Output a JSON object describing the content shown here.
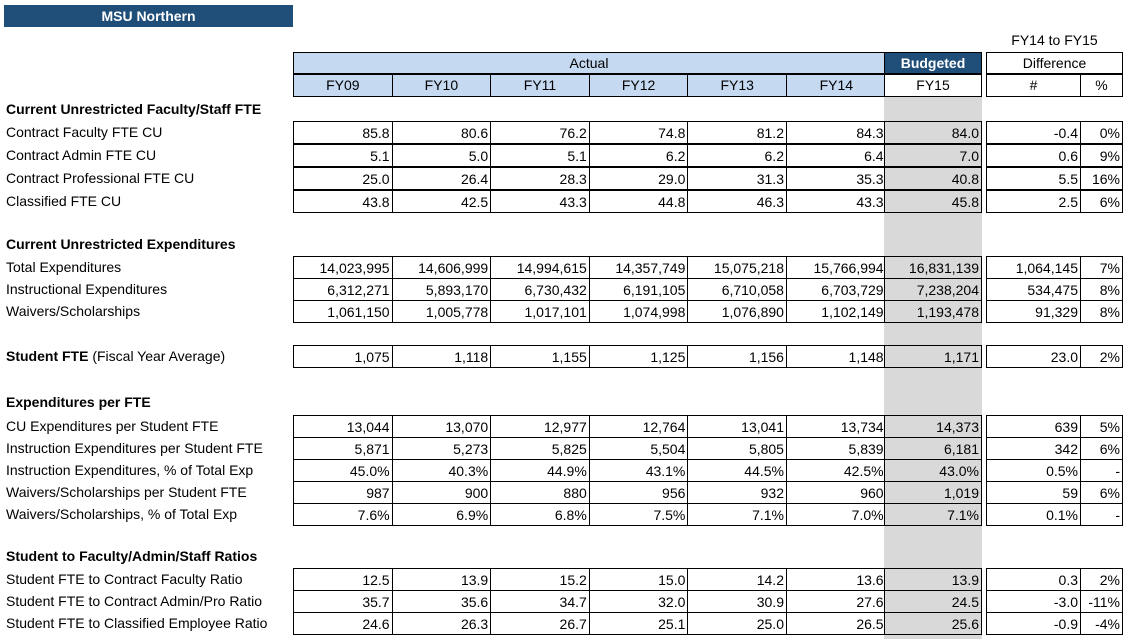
{
  "org_title": "MSU Northern",
  "header": {
    "diff_top": "FY14 to FY15",
    "actual_label": "Actual",
    "budgeted_label": "Budgeted",
    "difference_label": "Difference",
    "years": [
      "FY09",
      "FY10",
      "FY11",
      "FY12",
      "FY13",
      "FY14"
    ],
    "budget_year": "FY15",
    "diff_cols": [
      "#",
      "%"
    ]
  },
  "sections": [
    {
      "title": "Current Unrestricted Faculty/Staff FTE",
      "rows": [
        {
          "label": "Contract Faculty FTE CU",
          "values": [
            "85.8",
            "80.6",
            "76.2",
            "74.8",
            "81.2",
            "84.3"
          ],
          "budget": "84.0",
          "diff": "-0.4",
          "pct": "0%"
        },
        {
          "label": "Contract Admin FTE CU",
          "values": [
            "5.1",
            "5.0",
            "5.1",
            "6.2",
            "6.2",
            "6.4"
          ],
          "budget": "7.0",
          "diff": "0.6",
          "pct": "9%"
        },
        {
          "label": "Contract Professional FTE CU",
          "values": [
            "25.0",
            "26.4",
            "28.3",
            "29.0",
            "31.3",
            "35.3"
          ],
          "budget": "40.8",
          "diff": "5.5",
          "pct": "16%"
        },
        {
          "label": "Classified FTE CU",
          "values": [
            "43.8",
            "42.5",
            "43.3",
            "44.8",
            "46.3",
            "43.3"
          ],
          "budget": "45.8",
          "diff": "2.5",
          "pct": "6%"
        }
      ]
    },
    {
      "title": "Current Unrestricted Expenditures",
      "rows": [
        {
          "label": "Total Expenditures",
          "values": [
            "14,023,995",
            "14,606,999",
            "14,994,615",
            "14,357,749",
            "15,075,218",
            "15,766,994"
          ],
          "budget": "16,831,139",
          "diff": "1,064,145",
          "pct": "7%"
        },
        {
          "label": "Instructional Expenditures",
          "values": [
            "6,312,271",
            "5,893,170",
            "6,730,432",
            "6,191,105",
            "6,710,058",
            "6,703,729"
          ],
          "budget": "7,238,204",
          "diff": "534,475",
          "pct": "8%"
        },
        {
          "label": "Waivers/Scholarships",
          "values": [
            "1,061,150",
            "1,005,778",
            "1,017,101",
            "1,074,998",
            "1,076,890",
            "1,102,149"
          ],
          "budget": "1,193,478",
          "diff": "91,329",
          "pct": "8%"
        }
      ]
    },
    {
      "title": "",
      "rows": [
        {
          "label": "Student FTE",
          "label_suffix": " (Fiscal Year Average)",
          "bold": true,
          "values": [
            "1,075",
            "1,118",
            "1,155",
            "1,125",
            "1,156",
            "1,148"
          ],
          "budget": "1,171",
          "diff": "23.0",
          "pct": "2%"
        }
      ]
    },
    {
      "title": "Expenditures per FTE",
      "rows": [
        {
          "label": "CU Expenditures per Student FTE",
          "values": [
            "13,044",
            "13,070",
            "12,977",
            "12,764",
            "13,041",
            "13,734"
          ],
          "budget": "14,373",
          "diff": "639",
          "pct": "5%"
        },
        {
          "label": "Instruction Expenditures per Student FTE",
          "values": [
            "5,871",
            "5,273",
            "5,825",
            "5,504",
            "5,805",
            "5,839"
          ],
          "budget": "6,181",
          "diff": "342",
          "pct": "6%"
        },
        {
          "label": "Instruction Expenditures, % of Total Exp",
          "values": [
            "45.0%",
            "40.3%",
            "44.9%",
            "43.1%",
            "44.5%",
            "42.5%"
          ],
          "budget": "43.0%",
          "diff": "0.5%",
          "pct": "-"
        },
        {
          "label": "Waivers/Scholarships per Student FTE",
          "values": [
            "987",
            "900",
            "880",
            "956",
            "932",
            "960"
          ],
          "budget": "1,019",
          "diff": "59",
          "pct": "6%"
        },
        {
          "label": "Waivers/Scholarships, % of Total Exp",
          "values": [
            "7.6%",
            "6.9%",
            "6.8%",
            "7.5%",
            "7.1%",
            "7.0%"
          ],
          "budget": "7.1%",
          "diff": "0.1%",
          "pct": "-"
        }
      ]
    },
    {
      "title": "Student to Faculty/Admin/Staff Ratios",
      "rows": [
        {
          "label": "Student FTE to Contract Faculty Ratio",
          "values": [
            "12.5",
            "13.9",
            "15.2",
            "15.0",
            "14.2",
            "13.6"
          ],
          "budget": "13.9",
          "diff": "0.3",
          "pct": "2%"
        },
        {
          "label": "Student FTE to Contract Admin/Pro Ratio",
          "values": [
            "35.7",
            "35.6",
            "34.7",
            "32.0",
            "30.9",
            "27.6"
          ],
          "budget": "24.5",
          "diff": "-3.0",
          "pct": "-11%"
        },
        {
          "label": "Student FTE to Classified Employee Ratio",
          "values": [
            "24.6",
            "26.3",
            "26.7",
            "25.1",
            "25.0",
            "26.5"
          ],
          "budget": "25.6",
          "diff": "-0.9",
          "pct": "-4%"
        }
      ]
    }
  ]
}
